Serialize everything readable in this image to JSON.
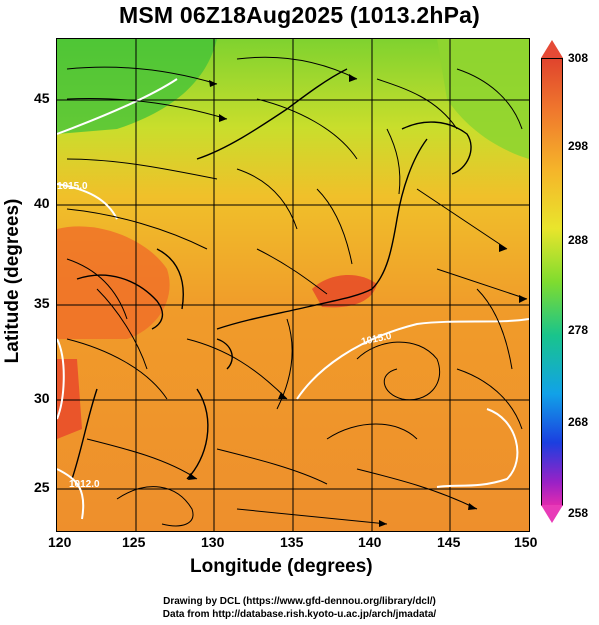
{
  "title": "MSM 06Z18Aug2025 (1013.2hPa)",
  "x_axis": {
    "label": "Longitude (degrees)",
    "ticks": [
      "120",
      "125",
      "130",
      "135",
      "140",
      "145",
      "150"
    ]
  },
  "y_axis": {
    "label": "Latitude  (degrees)",
    "ticks": [
      "45",
      "40",
      "35",
      "30",
      "25"
    ]
  },
  "colorbar": {
    "ticks": [
      "308",
      "298",
      "288",
      "278",
      "268",
      "258"
    ]
  },
  "contour_labels": [
    "1015.0",
    "1012.0",
    "1012.0",
    "1015.0"
  ],
  "footer": {
    "line1": "Drawing by DCL (https://www.gfd-dennou.org/library/dcl/)",
    "line2": "Data from http://database.rish.kyoto-u.ac.jp/arch/jmadata/"
  }
}
